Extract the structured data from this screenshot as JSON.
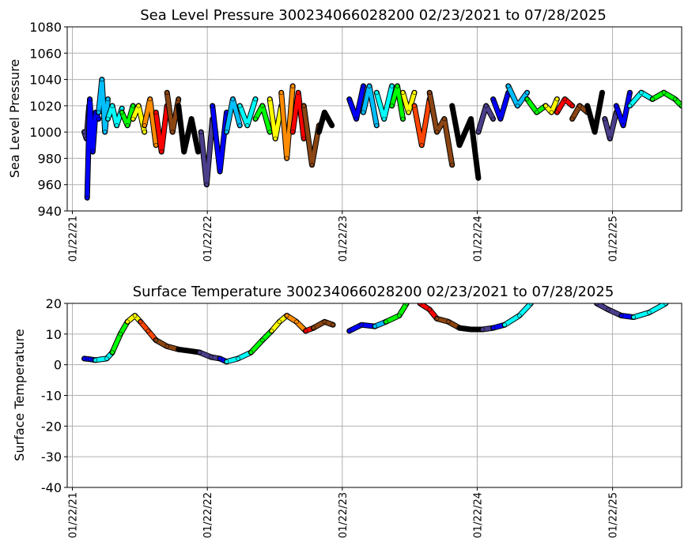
{
  "chart_data": [
    {
      "type": "scatter",
      "title": "Sea Level Pressure 300234066028200  02/23/2021 to 07/28/2025",
      "ylabel": "Sea Level Pressure",
      "xlabel": "",
      "ylim": [
        940,
        1080
      ],
      "yticks": [
        940,
        960,
        980,
        1000,
        1020,
        1040,
        1060,
        1080
      ],
      "xlim": [
        "2021-01-08",
        "2025-07-28"
      ],
      "xticks": [
        {
          "date": "2021-01-22",
          "label": "01/22/21"
        },
        {
          "date": "2022-01-22",
          "label": "01/22/22"
        },
        {
          "date": "2023-01-22",
          "label": "01/22/23"
        },
        {
          "date": "2024-01-22",
          "label": "01/22/24"
        },
        {
          "date": "2025-01-22",
          "label": "01/22/25"
        }
      ],
      "grid": true,
      "series": [
        {
          "x": [
            "2021-02-23",
            "2021-03-01",
            "2021-03-08",
            "2021-03-15"
          ],
          "y": [
            1000,
            995,
            1020,
            1005
          ],
          "color": "#4b3f8c"
        },
        {
          "x": [
            "2021-03-03",
            "2021-03-10",
            "2021-03-18",
            "2021-03-26",
            "2021-04-03"
          ],
          "y": [
            950,
            1025,
            985,
            1015,
            1010
          ],
          "color": "#0000ff"
        },
        {
          "x": [
            "2021-04-03",
            "2021-04-12",
            "2021-04-20",
            "2021-04-28"
          ],
          "y": [
            1015,
            1040,
            1000,
            1025
          ],
          "color": "#00bfff"
        },
        {
          "x": [
            "2021-04-28",
            "2021-05-10",
            "2021-05-22",
            "2021-06-05"
          ],
          "y": [
            1010,
            1020,
            1005,
            1018
          ],
          "color": "#00ffff"
        },
        {
          "x": [
            "2021-06-05",
            "2021-06-20",
            "2021-07-05"
          ],
          "y": [
            1015,
            1005,
            1020
          ],
          "color": "#00ff00"
        },
        {
          "x": [
            "2021-07-05",
            "2021-07-20",
            "2021-08-05"
          ],
          "y": [
            1010,
            1020,
            1000
          ],
          "color": "#ffff00"
        },
        {
          "x": [
            "2021-08-05",
            "2021-08-20",
            "2021-09-05"
          ],
          "y": [
            1005,
            1025,
            990
          ],
          "color": "#ff8c00"
        },
        {
          "x": [
            "2021-09-05",
            "2021-09-20",
            "2021-10-05"
          ],
          "y": [
            1015,
            985,
            1020
          ],
          "color": "#ff0000"
        },
        {
          "x": [
            "2021-10-05",
            "2021-10-20",
            "2021-11-05"
          ],
          "y": [
            1030,
            1000,
            1025
          ],
          "color": "#8b4513"
        },
        {
          "x": [
            "2021-11-05",
            "2021-11-20",
            "2021-12-10",
            "2021-12-28"
          ],
          "y": [
            1020,
            985,
            1010,
            985
          ],
          "color": "#000000"
        },
        {
          "x": [
            "2022-01-05",
            "2022-01-20",
            "2022-02-05"
          ],
          "y": [
            1000,
            960,
            1010
          ],
          "color": "#4b3f8c"
        },
        {
          "x": [
            "2022-02-05",
            "2022-02-25",
            "2022-03-15"
          ],
          "y": [
            1020,
            970,
            1015
          ],
          "color": "#0000ff"
        },
        {
          "x": [
            "2022-03-15",
            "2022-04-01",
            "2022-04-20"
          ],
          "y": [
            1000,
            1025,
            1005
          ],
          "color": "#00bfff"
        },
        {
          "x": [
            "2022-04-20",
            "2022-05-10",
            "2022-06-01"
          ],
          "y": [
            1020,
            1005,
            1025
          ],
          "color": "#00ffff"
        },
        {
          "x": [
            "2022-06-01",
            "2022-06-20",
            "2022-07-10"
          ],
          "y": [
            1010,
            1020,
            1000
          ],
          "color": "#00ff00"
        },
        {
          "x": [
            "2022-07-10",
            "2022-07-25",
            "2022-08-10"
          ],
          "y": [
            1025,
            995,
            1020
          ],
          "color": "#ffff00"
        },
        {
          "x": [
            "2022-08-10",
            "2022-08-25",
            "2022-09-10"
          ],
          "y": [
            1030,
            980,
            1035
          ],
          "color": "#ff8c00"
        },
        {
          "x": [
            "2022-09-10",
            "2022-09-25",
            "2022-10-10"
          ],
          "y": [
            1000,
            1030,
            995
          ],
          "color": "#ff0000"
        },
        {
          "x": [
            "2022-10-10",
            "2022-11-01",
            "2022-11-20"
          ],
          "y": [
            1020,
            975,
            1005
          ],
          "color": "#8b4513"
        },
        {
          "x": [
            "2022-11-20",
            "2022-12-05",
            "2022-12-25"
          ],
          "y": [
            1000,
            1015,
            1005
          ],
          "color": "#000000"
        },
        {
          "x": [
            "2023-02-10",
            "2023-03-01",
            "2023-03-20"
          ],
          "y": [
            1025,
            1010,
            1035
          ],
          "color": "#0000ff"
        },
        {
          "x": [
            "2023-03-20",
            "2023-04-05",
            "2023-04-25"
          ],
          "y": [
            1015,
            1035,
            1005
          ],
          "color": "#00bfff"
        },
        {
          "x": [
            "2023-04-25",
            "2023-05-15",
            "2023-06-05"
          ],
          "y": [
            1030,
            1010,
            1035
          ],
          "color": "#00ffff"
        },
        {
          "x": [
            "2023-06-05",
            "2023-06-20",
            "2023-07-05"
          ],
          "y": [
            1020,
            1035,
            1010
          ],
          "color": "#00ff00"
        },
        {
          "x": [
            "2023-07-05",
            "2023-07-20",
            "2023-08-05"
          ],
          "y": [
            1030,
            1015,
            1030
          ],
          "color": "#ffff00"
        },
        {
          "x": [
            "2023-08-05",
            "2023-08-25",
            "2023-09-15"
          ],
          "y": [
            1020,
            990,
            1025
          ],
          "color": "#ff4500"
        },
        {
          "x": [
            "2023-09-15",
            "2023-10-05",
            "2023-10-25",
            "2023-11-15"
          ],
          "y": [
            1030,
            1000,
            1010,
            975
          ],
          "color": "#8b4513"
        },
        {
          "x": [
            "2023-11-15",
            "2023-12-05",
            "2024-01-05",
            "2024-01-25"
          ],
          "y": [
            1020,
            990,
            1010,
            965
          ],
          "color": "#000000"
        },
        {
          "x": [
            "2024-01-25",
            "2024-02-15",
            "2024-03-05"
          ],
          "y": [
            1000,
            1020,
            1010
          ],
          "color": "#4b3f8c"
        },
        {
          "x": [
            "2024-03-05",
            "2024-03-25",
            "2024-04-15"
          ],
          "y": [
            1025,
            1010,
            1030
          ],
          "color": "#0000ff"
        },
        {
          "x": [
            "2024-04-15",
            "2024-05-10",
            "2024-06-05"
          ],
          "y": [
            1035,
            1020,
            1030
          ],
          "color": "#00bfff"
        },
        {
          "x": [
            "2024-06-05",
            "2024-07-01",
            "2024-07-25"
          ],
          "y": [
            1025,
            1015,
            1020
          ],
          "color": "#00ff00"
        },
        {
          "x": [
            "2024-07-25",
            "2024-08-10",
            "2024-08-25"
          ],
          "y": [
            1020,
            1015,
            1025
          ],
          "color": "#ffff00"
        },
        {
          "x": [
            "2024-08-25",
            "2024-09-15",
            "2024-10-05"
          ],
          "y": [
            1015,
            1025,
            1020
          ],
          "color": "#ff0000"
        },
        {
          "x": [
            "2024-10-05",
            "2024-10-25",
            "2024-11-15"
          ],
          "y": [
            1010,
            1020,
            1015
          ],
          "color": "#8b4513"
        },
        {
          "x": [
            "2024-11-15",
            "2024-12-05",
            "2024-12-25"
          ],
          "y": [
            1020,
            1000,
            1030
          ],
          "color": "#000000"
        },
        {
          "x": [
            "2025-01-01",
            "2025-01-15",
            "2025-02-01"
          ],
          "y": [
            1010,
            995,
            1015
          ],
          "color": "#4b3f8c"
        },
        {
          "x": [
            "2025-02-01",
            "2025-02-20",
            "2025-03-10"
          ],
          "y": [
            1020,
            1005,
            1030
          ],
          "color": "#0000ff"
        },
        {
          "x": [
            "2025-03-10",
            "2025-04-10",
            "2025-05-10"
          ],
          "y": [
            1020,
            1030,
            1025
          ],
          "color": "#00ffff"
        },
        {
          "x": [
            "2025-05-10",
            "2025-06-10",
            "2025-07-10",
            "2025-07-28"
          ],
          "y": [
            1025,
            1030,
            1025,
            1020
          ],
          "color": "#00ff00"
        }
      ]
    },
    {
      "type": "scatter",
      "title": "Surface Temperature 300234066028200  02/23/2021 to 07/28/2025",
      "ylabel": "Surface Temperature",
      "xlabel": "",
      "ylim": [
        -40,
        20
      ],
      "yticks": [
        -40,
        -30,
        -20,
        -10,
        0,
        10,
        20
      ],
      "xlim": [
        "2021-01-08",
        "2025-07-28"
      ],
      "xticks": [
        {
          "date": "2021-01-22",
          "label": "01/22/21"
        },
        {
          "date": "2022-01-22",
          "label": "01/22/22"
        },
        {
          "date": "2023-01-22",
          "label": "01/22/23"
        },
        {
          "date": "2024-01-22",
          "label": "01/22/24"
        },
        {
          "date": "2025-01-22",
          "label": "01/22/25"
        }
      ],
      "grid": true,
      "series": [
        {
          "x": [
            "2021-02-23",
            "2021-03-10",
            "2021-03-25"
          ],
          "y": [
            2,
            1.8,
            1.5
          ],
          "color": "#0000ff"
        },
        {
          "x": [
            "2021-03-25",
            "2021-04-25",
            "2021-05-10"
          ],
          "y": [
            1.5,
            2,
            4
          ],
          "color": "#00ffff"
        },
        {
          "x": [
            "2021-05-10",
            "2021-06-01",
            "2021-06-20"
          ],
          "y": [
            4,
            10,
            14
          ],
          "color": "#00ff00"
        },
        {
          "x": [
            "2021-06-20",
            "2021-07-10",
            "2021-07-25"
          ],
          "y": [
            14,
            16,
            14
          ],
          "color": "#ffff00"
        },
        {
          "x": [
            "2021-07-25",
            "2021-08-15",
            "2021-09-05"
          ],
          "y": [
            14,
            11,
            8
          ],
          "color": "#ff4500"
        },
        {
          "x": [
            "2021-09-05",
            "2021-10-05",
            "2021-11-05"
          ],
          "y": [
            8,
            6,
            5
          ],
          "color": "#8b4513"
        },
        {
          "x": [
            "2021-11-05",
            "2021-12-05",
            "2022-01-01"
          ],
          "y": [
            5,
            4.5,
            4
          ],
          "color": "#000000"
        },
        {
          "x": [
            "2022-01-01",
            "2022-02-01",
            "2022-02-25"
          ],
          "y": [
            4,
            2.5,
            2
          ],
          "color": "#4b3f8c"
        },
        {
          "x": [
            "2022-02-25",
            "2022-03-15"
          ],
          "y": [
            2,
            1
          ],
          "color": "#0000ff"
        },
        {
          "x": [
            "2022-03-15",
            "2022-04-15",
            "2022-05-20"
          ],
          "y": [
            1,
            2,
            4
          ],
          "color": "#00ffff"
        },
        {
          "x": [
            "2022-05-20",
            "2022-06-20",
            "2022-07-15"
          ],
          "y": [
            4,
            8,
            11
          ],
          "color": "#00ff00"
        },
        {
          "x": [
            "2022-07-15",
            "2022-08-05",
            "2022-08-25"
          ],
          "y": [
            11,
            14,
            16
          ],
          "color": "#ffff00"
        },
        {
          "x": [
            "2022-08-25",
            "2022-09-20",
            "2022-10-15"
          ],
          "y": [
            16,
            14,
            11
          ],
          "color": "#ff8c00"
        },
        {
          "x": [
            "2022-10-15",
            "2022-11-05"
          ],
          "y": [
            11,
            12
          ],
          "color": "#ff0000"
        },
        {
          "x": [
            "2022-11-05",
            "2022-12-05",
            "2022-12-28"
          ],
          "y": [
            12,
            14,
            13
          ],
          "color": "#8b4513"
        },
        {
          "x": [
            "2023-02-10",
            "2023-03-15",
            "2023-04-20"
          ],
          "y": [
            11,
            13,
            12.5
          ],
          "color": "#0000ff"
        },
        {
          "x": [
            "2023-04-20",
            "2023-05-20"
          ],
          "y": [
            12.5,
            14
          ],
          "color": "#00bfff"
        },
        {
          "x": [
            "2023-05-20",
            "2023-06-25",
            "2023-07-15"
          ],
          "y": [
            14,
            16,
            20
          ],
          "color": "#00ff00"
        },
        {
          "x": [
            "2023-08-20",
            "2023-09-15",
            "2023-10-05"
          ],
          "y": [
            20,
            18,
            15
          ],
          "color": "#ff0000"
        },
        {
          "x": [
            "2023-10-05",
            "2023-11-05",
            "2023-12-05"
          ],
          "y": [
            15,
            14,
            12
          ],
          "color": "#8b4513"
        },
        {
          "x": [
            "2023-12-05",
            "2024-01-05",
            "2024-02-05"
          ],
          "y": [
            12,
            11.5,
            11.5
          ],
          "color": "#000000"
        },
        {
          "x": [
            "2024-02-05",
            "2024-03-05"
          ],
          "y": [
            11.5,
            12
          ],
          "color": "#4b3f8c"
        },
        {
          "x": [
            "2024-03-05",
            "2024-04-05"
          ],
          "y": [
            12,
            13
          ],
          "color": "#0000ff"
        },
        {
          "x": [
            "2024-04-05",
            "2024-05-15",
            "2024-06-15"
          ],
          "y": [
            13,
            16,
            20
          ],
          "color": "#00ffff"
        },
        {
          "x": [
            "2024-12-10",
            "2025-01-10",
            "2025-02-15"
          ],
          "y": [
            20,
            18,
            16
          ],
          "color": "#4b3f8c"
        },
        {
          "x": [
            "2025-02-15",
            "2025-03-20"
          ],
          "y": [
            16,
            15.5
          ],
          "color": "#0000ff"
        },
        {
          "x": [
            "2025-03-20",
            "2025-05-01",
            "2025-06-15"
          ],
          "y": [
            15.5,
            17,
            20
          ],
          "color": "#00ffff"
        }
      ]
    }
  ]
}
